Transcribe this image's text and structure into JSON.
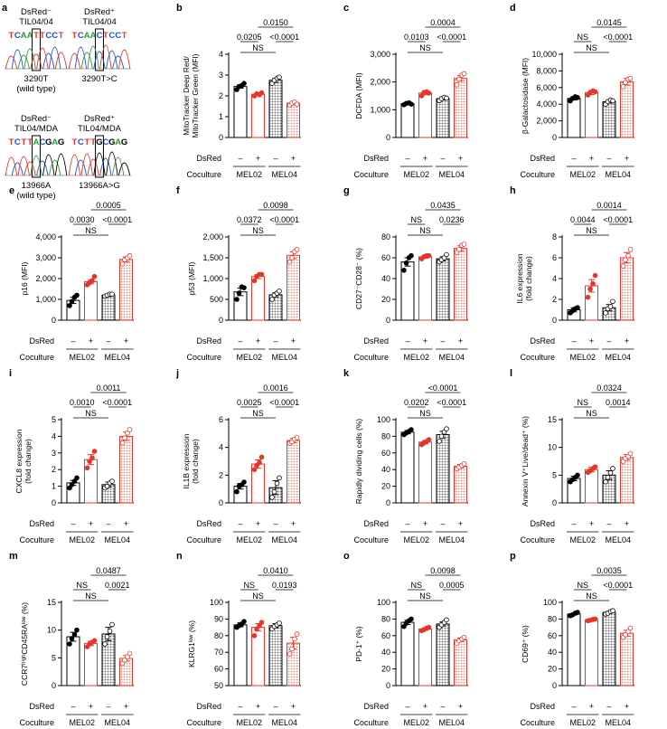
{
  "colors": {
    "red": "#e8352a",
    "black": "#000000",
    "grey_fill": "#c8c8c8"
  },
  "row_labels": {
    "dsred": "DsRed",
    "coculture": "Coculture",
    "minus": "–",
    "plus": "+",
    "mel02": "MEL02",
    "mel04": "MEL04"
  },
  "seq_panel": {
    "letter": "a",
    "blocks": [
      {
        "label1": "DsRed⁻",
        "label2": "TIL04/04",
        "sequence": "TCAATTCCT",
        "caption1": "3290T",
        "caption2": "(wild type)"
      },
      {
        "label1": "DsRed⁺",
        "label2": "TIL04/04",
        "sequence": "TCAACTCCT",
        "caption1": "3290T>C",
        "caption2": ""
      },
      {
        "label1": "DsRed⁻",
        "label2": "TIL04/MDA",
        "sequence": "TCTTACGAG",
        "caption1": "13966A",
        "caption2": "(wild type)"
      },
      {
        "label1": "DsRed⁺",
        "label2": "TIL04/MDA",
        "sequence": "TCTTGCGAG",
        "caption1": "13966A>G",
        "caption2": ""
      }
    ]
  },
  "chart_data": [
    {
      "letter": "b",
      "type": "bar",
      "ylabel": "MitoTracker Deep Red/\nMitoTracker Green (MFI)",
      "ylim": [
        0,
        4
      ],
      "ticks": [
        0,
        1,
        2,
        3,
        4
      ],
      "means": [
        2.45,
        2.08,
        2.75,
        1.65
      ],
      "errors": [
        0.08,
        0.08,
        0.1,
        0.08
      ],
      "points": [
        [
          2.3,
          2.45,
          2.5,
          2.6
        ],
        [
          2.0,
          2.1,
          2.05,
          2.15
        ],
        [
          2.6,
          2.75,
          2.85,
          2.9
        ],
        [
          1.55,
          1.65,
          1.7,
          1.6
        ]
      ],
      "p_values": [
        "0.0205",
        "NS",
        "0.0150",
        "<0.0001"
      ]
    },
    {
      "letter": "c",
      "type": "bar",
      "ylabel": "DCFDA (MFI)",
      "ylim": [
        0,
        3000
      ],
      "ticks": [
        0,
        1000,
        2000,
        3000
      ],
      "tick_labels": [
        "0",
        "1,000",
        "2,000",
        "3,000"
      ],
      "means": [
        1220,
        1600,
        1400,
        2130
      ],
      "errors": [
        40,
        60,
        50,
        100
      ],
      "points": [
        [
          1180,
          1230,
          1250,
          1200
        ],
        [
          1500,
          1620,
          1650,
          1600
        ],
        [
          1330,
          1400,
          1450,
          1420
        ],
        [
          1900,
          2100,
          2250,
          2300
        ]
      ],
      "p_values": [
        "0.0103",
        "NS",
        "0.0004",
        "<0.0001"
      ]
    },
    {
      "letter": "d",
      "type": "bar",
      "ylabel": "β-Galactosidase (MFI)",
      "ylim": [
        0,
        10000
      ],
      "ticks": [
        0,
        2000,
        4000,
        6000,
        8000,
        10000
      ],
      "tick_labels": [
        "0",
        "2,000",
        "4,000",
        "6,000",
        "8,000",
        "10,000"
      ],
      "means": [
        4700,
        5400,
        4300,
        6700
      ],
      "errors": [
        200,
        250,
        150,
        400
      ],
      "points": [
        [
          4400,
          4700,
          4900,
          4800
        ],
        [
          5100,
          5400,
          5600,
          5500
        ],
        [
          4000,
          4300,
          4500,
          4400
        ],
        [
          6100,
          6600,
          7000,
          7100
        ]
      ],
      "p_values": [
        "NS",
        "NS",
        "0.0145",
        "<0.0001"
      ]
    },
    {
      "letter": "e",
      "type": "bar",
      "ylabel": "p16 (MFI)",
      "ylim": [
        0,
        4000
      ],
      "ticks": [
        0,
        1000,
        2000,
        3000,
        4000
      ],
      "tick_labels": [
        "0",
        "1,000",
        "2,000",
        "3,000",
        "4,000"
      ],
      "means": [
        950,
        1850,
        1200,
        2920
      ],
      "errors": [
        150,
        100,
        60,
        120
      ],
      "points": [
        [
          700,
          900,
          1100,
          1200
        ],
        [
          1700,
          1800,
          1900,
          2100
        ],
        [
          1150,
          1200,
          1250,
          1250
        ],
        [
          2700,
          2900,
          3000,
          3100
        ]
      ],
      "p_values": [
        "0.0030",
        "NS",
        "0.0005",
        "<0.0001"
      ]
    },
    {
      "letter": "f",
      "type": "bar",
      "ylabel": "p53 (MFI)",
      "ylim": [
        0,
        2000
      ],
      "ticks": [
        0,
        500,
        1000,
        1500,
        2000
      ],
      "tick_labels": [
        "0",
        "500",
        "1,000",
        "1,500",
        "2,000"
      ],
      "means": [
        680,
        1050,
        610,
        1560
      ],
      "errors": [
        90,
        50,
        50,
        80
      ],
      "points": [
        [
          500,
          650,
          800,
          780
        ],
        [
          950,
          1050,
          1100,
          1100
        ],
        [
          500,
          600,
          650,
          700
        ],
        [
          1400,
          1500,
          1650,
          1700
        ]
      ],
      "p_values": [
        "0.0372",
        "NS",
        "0.0098",
        "<0.0001"
      ]
    },
    {
      "letter": "g",
      "type": "bar",
      "ylabel": "CD27⁻CD28⁻ (%)",
      "ylim": [
        0,
        80
      ],
      "ticks": [
        0,
        20,
        40,
        60,
        80
      ],
      "means": [
        56,
        61,
        59,
        69
      ],
      "errors": [
        4,
        1.5,
        2,
        2.5
      ],
      "points": [
        [
          48,
          55,
          60,
          62
        ],
        [
          59,
          61,
          62,
          62
        ],
        [
          56,
          58,
          60,
          63
        ],
        [
          65,
          68,
          72,
          73
        ]
      ],
      "p_values": [
        "NS",
        "NS",
        "0.0435",
        "0.0236"
      ]
    },
    {
      "letter": "h",
      "type": "bar",
      "ylabel": "IL6 expression\n(fold change)",
      "ylim": [
        0,
        8
      ],
      "ticks": [
        0,
        2,
        4,
        6,
        8
      ],
      "means": [
        1.0,
        3.3,
        1.2,
        6.0
      ],
      "errors": [
        0.2,
        0.6,
        0.3,
        0.5
      ],
      "points": [
        [
          0.7,
          0.9,
          1.1,
          1.2
        ],
        [
          2.2,
          3.0,
          3.5,
          4.3
        ],
        [
          0.7,
          1.1,
          1.3,
          1.8
        ],
        [
          5.2,
          5.8,
          6.2,
          6.8
        ]
      ],
      "p_values": [
        "0.0044",
        "NS",
        "0.0014",
        "<0.0001"
      ]
    },
    {
      "letter": "i",
      "type": "bar",
      "ylabel": "CXCL8 expression\n(fold change)",
      "ylim": [
        0,
        5
      ],
      "ticks": [
        0,
        1,
        2,
        3,
        4,
        5
      ],
      "means": [
        1.2,
        2.6,
        1.1,
        4.0
      ],
      "errors": [
        0.15,
        0.3,
        0.15,
        0.25
      ],
      "points": [
        [
          0.9,
          1.1,
          1.3,
          1.5
        ],
        [
          2.1,
          2.5,
          2.7,
          3.1
        ],
        [
          0.9,
          1.0,
          1.2,
          1.3
        ],
        [
          3.6,
          3.9,
          4.2,
          4.4
        ]
      ],
      "p_values": [
        "0.0010",
        "NS",
        "0.0011",
        "<0.0001"
      ]
    },
    {
      "letter": "j",
      "type": "bar",
      "ylabel": "IL1B expression\n(fold change)",
      "ylim": [
        0,
        6
      ],
      "ticks": [
        0,
        2,
        4,
        6
      ],
      "means": [
        1.2,
        2.8,
        1.1,
        4.5
      ],
      "errors": [
        0.2,
        0.3,
        0.5,
        0.15
      ],
      "points": [
        [
          0.8,
          1.2,
          1.3,
          1.5
        ],
        [
          2.4,
          2.7,
          2.9,
          3.3
        ],
        [
          0.4,
          0.8,
          1.4,
          1.8
        ],
        [
          4.3,
          4.4,
          4.6,
          4.7
        ]
      ],
      "p_values": [
        "0.0025",
        "NS",
        "0.0016",
        "<0.0001"
      ]
    },
    {
      "letter": "k",
      "type": "bar",
      "ylabel": "Rapidly dividing cells (%)",
      "ylim": [
        0,
        100
      ],
      "ticks": [
        0,
        20,
        40,
        60,
        80,
        100
      ],
      "means": [
        85,
        73,
        82,
        44
      ],
      "errors": [
        2,
        2,
        4,
        2
      ],
      "points": [
        [
          82,
          84,
          86,
          88
        ],
        [
          70,
          72,
          74,
          76
        ],
        [
          74,
          80,
          85,
          89
        ],
        [
          41,
          43,
          45,
          47
        ]
      ],
      "p_values": [
        "0.0202",
        "NS",
        "<0.0001",
        "<0.0001"
      ]
    },
    {
      "letter": "l",
      "type": "bar",
      "ylabel": "Annexin V⁺Live/dead⁺ (%)",
      "ylim": [
        0,
        15
      ],
      "ticks": [
        0,
        5,
        10,
        15
      ],
      "means": [
        4.4,
        6.0,
        5.0,
        8.2
      ],
      "errors": [
        0.4,
        0.4,
        0.8,
        0.5
      ],
      "points": [
        [
          3.8,
          4.2,
          4.6,
          5.0
        ],
        [
          5.5,
          5.8,
          6.2,
          6.5
        ],
        [
          3.8,
          4.6,
          5.4,
          6.2
        ],
        [
          7.5,
          8.0,
          8.4,
          8.9
        ]
      ],
      "p_values": [
        "NS",
        "NS",
        "0.0324",
        "0.0014"
      ]
    },
    {
      "letter": "m",
      "type": "bar",
      "ylabel": "CCR7ʰⁱᵍʰCD45RAˡᵒʷ (%)",
      "ylim": [
        0,
        15
      ],
      "ticks": [
        0,
        5,
        10,
        15
      ],
      "means": [
        8.8,
        7.6,
        9.3,
        4.9
      ],
      "errors": [
        0.8,
        0.4,
        1.2,
        0.5
      ],
      "points": [
        [
          7.5,
          8.5,
          9.2,
          10.0
        ],
        [
          7.0,
          7.5,
          7.8,
          8.1
        ],
        [
          7.5,
          8.8,
          9.8,
          11.0
        ],
        [
          4.0,
          4.6,
          5.2,
          5.8
        ]
      ],
      "p_values": [
        "NS",
        "NS",
        "0.0487",
        "0.0021"
      ]
    },
    {
      "letter": "n",
      "type": "bar",
      "ylabel": "KLRG1ˡᵒʷ (%)",
      "ylim": [
        50,
        100
      ],
      "ticks": [
        50,
        60,
        70,
        80,
        90,
        100
      ],
      "means": [
        86.5,
        85,
        86,
        75.5
      ],
      "errors": [
        1.2,
        2.2,
        1.2,
        3.5
      ],
      "points": [
        [
          85,
          86,
          87,
          88.5
        ],
        [
          80,
          84,
          86,
          88
        ],
        [
          84,
          85.5,
          86.5,
          87.5
        ],
        [
          69,
          72,
          78,
          81
        ]
      ],
      "p_values": [
        "NS",
        "NS",
        "0.0410",
        "0.0193"
      ]
    },
    {
      "letter": "o",
      "type": "bar",
      "ylabel": "PD-1⁺ (%)",
      "ylim": [
        0,
        100
      ],
      "ticks": [
        0,
        20,
        40,
        60,
        80,
        100
      ],
      "means": [
        76,
        68,
        74,
        55
      ],
      "errors": [
        2.5,
        1.5,
        2.5,
        2.2
      ],
      "points": [
        [
          71,
          75,
          78,
          80
        ],
        [
          66,
          67,
          69,
          70
        ],
        [
          70,
          73,
          76,
          79
        ],
        [
          51,
          54,
          56,
          58
        ]
      ],
      "p_values": [
        "NS",
        "NS",
        "0.0098",
        "0.0005"
      ]
    },
    {
      "letter": "p",
      "type": "bar",
      "ylabel": "CD69⁺ (%)",
      "ylim": [
        0,
        100
      ],
      "ticks": [
        0,
        20,
        40,
        60,
        80,
        100
      ],
      "means": [
        86,
        79,
        88,
        63
      ],
      "errors": [
        1.2,
        1,
        1.2,
        3.5
      ],
      "points": [
        [
          84,
          85,
          87,
          88
        ],
        [
          78,
          78.5,
          79.5,
          80
        ],
        [
          86,
          87,
          89,
          90
        ],
        [
          58,
          61,
          65,
          69
        ]
      ],
      "p_values": [
        "NS",
        "NS",
        "0.0035",
        "<0.0001"
      ]
    }
  ]
}
